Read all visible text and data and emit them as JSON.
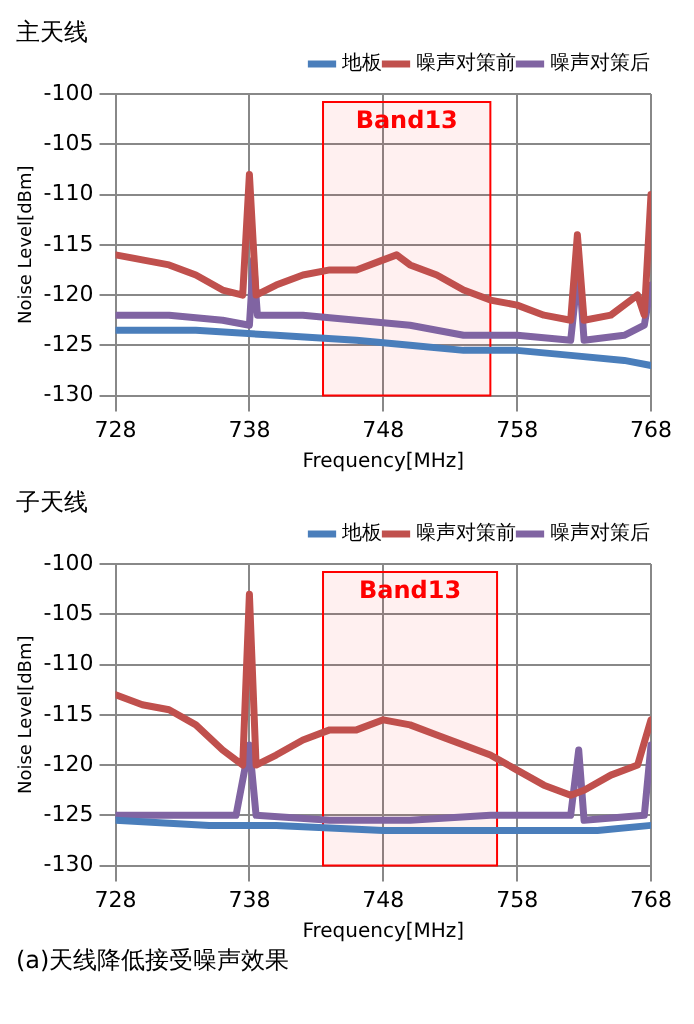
{
  "chart_data": [
    {
      "type": "line",
      "title": "主天线",
      "xlabel": "Frequency[MHz]",
      "ylabel": "Noise Level[dBm]",
      "xlim": [
        728,
        768
      ],
      "xticks": [
        728,
        738,
        748,
        758,
        768
      ],
      "ylim": [
        -130,
        -100
      ],
      "yticks": [
        -130,
        -125,
        -120,
        -115,
        -110,
        -105,
        -100
      ],
      "grid": true,
      "legend": "top right",
      "marker": "none",
      "line_style": "solid",
      "bands": [
        {
          "axis": "x",
          "from": 743.5,
          "to": 756,
          "label": "Band13",
          "color": "#ff0000"
        }
      ],
      "series": [
        {
          "name": "地板",
          "color": "#4a7ebb",
          "x": [
            728,
            734,
            740,
            746,
            750,
            754,
            758,
            762,
            766,
            768
          ],
          "values": [
            -123.5,
            -123.5,
            -124,
            -124.5,
            -125,
            -125.5,
            -125.5,
            -126,
            -126.5,
            -127
          ]
        },
        {
          "name": "噪声对策前",
          "color": "#c0504d",
          "x": [
            728,
            730,
            732,
            734,
            736,
            737.5,
            738,
            738.5,
            740,
            742,
            744,
            746,
            748,
            749,
            750,
            752,
            754,
            756,
            758,
            760,
            762,
            762.5,
            763,
            765,
            767,
            767.5,
            768
          ],
          "values": [
            -116,
            -116.5,
            -117,
            -118,
            -119.5,
            -120,
            -108,
            -120,
            -119,
            -118,
            -117.5,
            -117.5,
            -116.5,
            -116,
            -117,
            -118,
            -119.5,
            -120.5,
            -121,
            -122,
            -122.5,
            -114,
            -122.5,
            -122,
            -120,
            -122,
            -110
          ]
        },
        {
          "name": "噪声对策后",
          "color": "#8064a2",
          "x": [
            728,
            732,
            736,
            738,
            738.3,
            738.6,
            742,
            746,
            750,
            754,
            758,
            762,
            762.6,
            763,
            766,
            767.5,
            768
          ],
          "values": [
            -122,
            -122,
            -122.5,
            -123,
            -116.5,
            -122,
            -122,
            -122.5,
            -123,
            -124,
            -124,
            -124.5,
            -117,
            -124.5,
            -124,
            -123,
            -119
          ]
        }
      ]
    },
    {
      "type": "line",
      "title": "子天线",
      "xlabel": "Frequency[MHz]",
      "ylabel": "Noise Level[dBm]",
      "xlim": [
        728,
        768
      ],
      "xticks": [
        728,
        738,
        748,
        758,
        768
      ],
      "ylim": [
        -130,
        -100
      ],
      "yticks": [
        -130,
        -125,
        -120,
        -115,
        -110,
        -105,
        -100
      ],
      "grid": true,
      "legend": "top right",
      "marker": "none",
      "line_style": "solid",
      "bands": [
        {
          "axis": "x",
          "from": 743.5,
          "to": 756.5,
          "label": "Band13",
          "color": "#ff0000"
        }
      ],
      "annotations": [
        "(a)天线降低接受噪声效果"
      ],
      "series": [
        {
          "name": "地板",
          "color": "#4a7ebb",
          "x": [
            728,
            735,
            740,
            748,
            756,
            764,
            768
          ],
          "values": [
            -125.5,
            -126,
            -126,
            -126.5,
            -126.5,
            -126.5,
            -126
          ]
        },
        {
          "name": "噪声对策前",
          "color": "#c0504d",
          "x": [
            728,
            730,
            732,
            734,
            736,
            737.5,
            738,
            738.5,
            740,
            742,
            744,
            746,
            748,
            750,
            752,
            754,
            756,
            758,
            760,
            762,
            763,
            765,
            767,
            768
          ],
          "values": [
            -113,
            -114,
            -114.5,
            -116,
            -118.5,
            -120,
            -103,
            -120,
            -119,
            -117.5,
            -116.5,
            -116.5,
            -115.5,
            -116,
            -117,
            -118,
            -119,
            -120.5,
            -122,
            -123,
            -122.5,
            -121,
            -120,
            -115.5
          ]
        },
        {
          "name": "噪声对策后",
          "color": "#8064a2",
          "x": [
            728,
            732,
            737,
            738,
            738.5,
            744,
            750,
            756,
            762,
            762.6,
            763,
            767.5,
            768
          ],
          "values": [
            -125,
            -125,
            -125,
            -118,
            -125,
            -125.5,
            -125.5,
            -125,
            -125,
            -118.5,
            -125.5,
            -125,
            -118
          ]
        }
      ]
    }
  ]
}
